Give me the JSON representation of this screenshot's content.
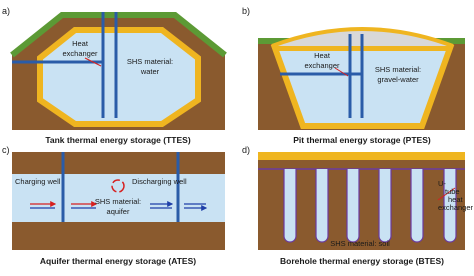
{
  "panels": [
    {
      "letter": "a)",
      "caption": "Tank thermal energy storage (TTES)",
      "heat_exchanger": [
        "Heat",
        "exchanger"
      ],
      "material": [
        "SHS material:",
        "water"
      ]
    },
    {
      "letter": "b)",
      "caption": "Pit thermal energy storage (PTES)",
      "heat_exchanger": [
        "Heat",
        "exchanger"
      ],
      "material": [
        "SHS material:",
        "gravel-water"
      ]
    },
    {
      "letter": "c)",
      "caption": "Aquifer thermal energy storage (ATES)",
      "charging": "Charging well",
      "discharging": "Discharging well",
      "material": [
        "SHS material:",
        "aquifer"
      ]
    },
    {
      "letter": "d)",
      "caption": "Borehole thermal energy storage (BTES)",
      "exchanger": [
        "U-",
        "tube",
        "heat",
        "exchanger"
      ],
      "material": [
        "SHS material: soil"
      ]
    }
  ]
}
